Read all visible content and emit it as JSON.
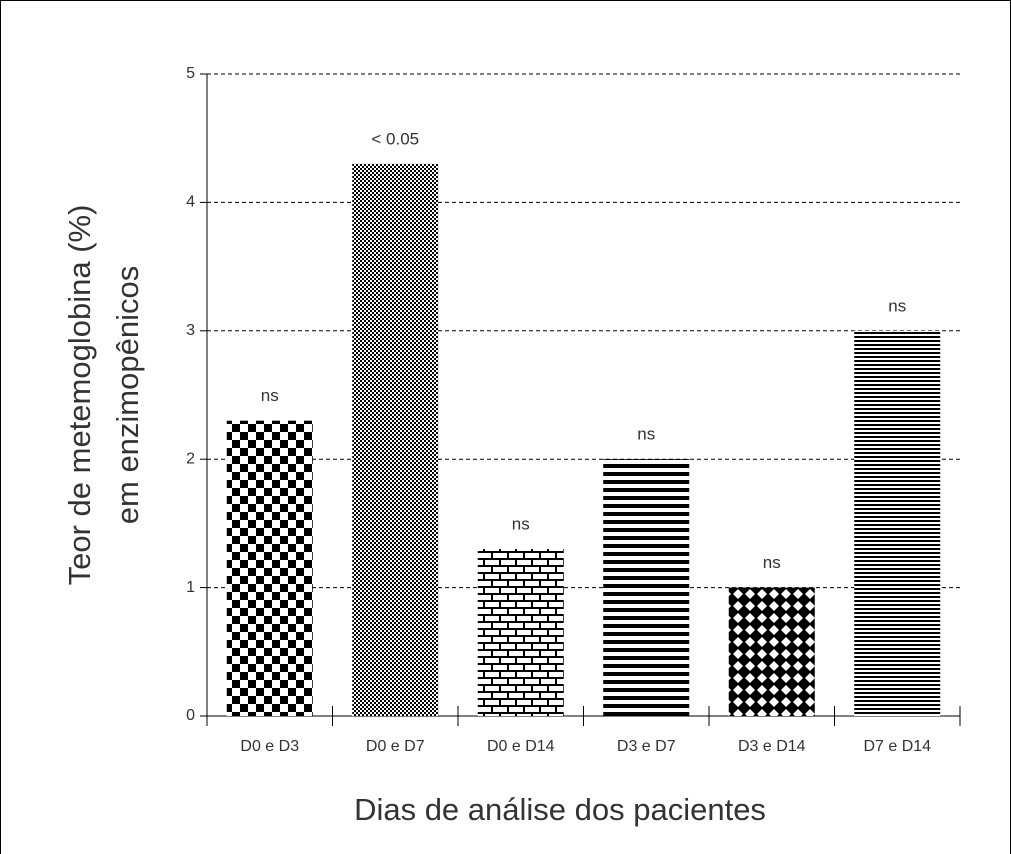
{
  "chart_data": {
    "type": "bar",
    "ylabel": [
      "Teor de metemoglobina (%)",
      "em enzimopênicos"
    ],
    "xlabel": "Dias de análise dos pacientes",
    "categories": [
      "D0 e D3",
      "D0 e D7",
      "D0 e D14",
      "D3 e D7",
      "D3 e D14",
      "D7 e D14"
    ],
    "values": [
      2.3,
      4.3,
      1.3,
      2.0,
      1.0,
      3.0
    ],
    "annotations": [
      "ns",
      "< 0.05",
      "ns",
      "ns",
      "ns",
      "ns"
    ],
    "color": "#000000",
    "ylim": [
      0,
      5
    ],
    "yticks": [
      0,
      1,
      2,
      3,
      4,
      5
    ],
    "grid": true
  }
}
